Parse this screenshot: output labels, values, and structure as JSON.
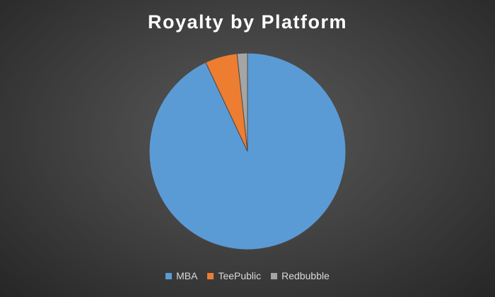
{
  "chart_data": {
    "type": "pie",
    "title": "Royalty by Platform",
    "slices": [
      {
        "label": "MBA",
        "value": 93,
        "color": "#5b9bd5"
      },
      {
        "label": "TeePublic",
        "value": 5.3,
        "color": "#ed7d31"
      },
      {
        "label": "Redbubble",
        "value": 1.7,
        "color": "#a5a5a5"
      }
    ],
    "legend_position": "bottom"
  }
}
